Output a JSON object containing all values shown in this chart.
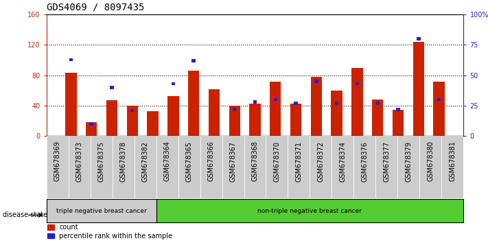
{
  "title": "GDS4069 / 8097435",
  "samples": [
    "GSM678369",
    "GSM678373",
    "GSM678375",
    "GSM678378",
    "GSM678382",
    "GSM678364",
    "GSM678365",
    "GSM678366",
    "GSM678367",
    "GSM678368",
    "GSM678370",
    "GSM678371",
    "GSM678372",
    "GSM678374",
    "GSM678376",
    "GSM678377",
    "GSM678379",
    "GSM678380",
    "GSM678381"
  ],
  "counts": [
    83,
    18,
    47,
    40,
    33,
    53,
    86,
    62,
    40,
    43,
    72,
    43,
    78,
    60,
    90,
    48,
    35,
    124,
    72
  ],
  "percentiles": [
    63,
    10,
    40,
    21,
    0,
    43,
    62,
    0,
    22,
    28,
    30,
    27,
    45,
    27,
    43,
    27,
    22,
    80,
    30
  ],
  "group1_label": "triple negative breast cancer",
  "group2_label": "non-triple negative breast cancer",
  "group1_count": 5,
  "group2_count": 14,
  "legend_count": "count",
  "legend_pct": "percentile rank within the sample",
  "ylim_left": [
    0,
    160
  ],
  "ylim_right": [
    0,
    100
  ],
  "yticks_left": [
    0,
    40,
    80,
    120,
    160
  ],
  "yticks_right": [
    0,
    25,
    50,
    75,
    100
  ],
  "ytick_labels_right": [
    "0",
    "25",
    "50",
    "75",
    "100%"
  ],
  "bar_color_red": "#cc2200",
  "bar_color_blue": "#2222cc",
  "plot_bg": "#ffffff",
  "group1_bg": "#cccccc",
  "group2_bg": "#55cc33",
  "xtick_bg": "#cccccc",
  "disease_state_label": "disease state",
  "title_fontsize": 10,
  "tick_fontsize": 7,
  "label_fontsize": 7,
  "bar_width": 0.55,
  "blue_bar_width": 0.18
}
